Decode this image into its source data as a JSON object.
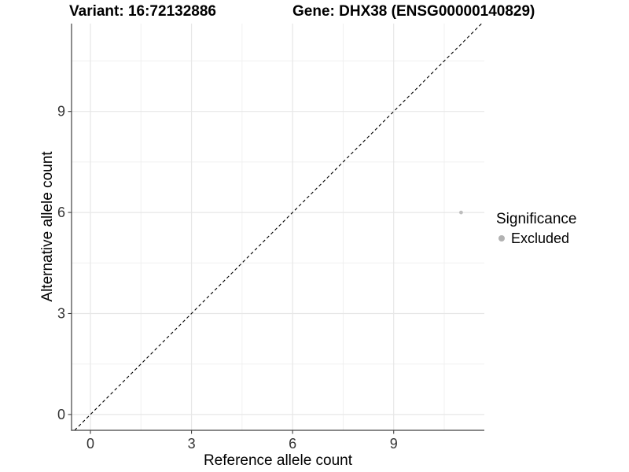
{
  "titles": {
    "variant": "Variant: 16:72132886",
    "gene": "Gene: DHX38 (ENSG00000140829)"
  },
  "legend": {
    "title": "Significance",
    "items": [
      {
        "label": "Excluded",
        "color": "#b2b2b2"
      }
    ]
  },
  "colors": {
    "background": "#ffffff",
    "grid_major": "#e7e7e7",
    "grid_minor": "#f0f0f0",
    "axis_line": "#404040",
    "tick_mark": "#404040",
    "tick_text": "#333333",
    "reference_line": "#000000",
    "point": "#bebebe"
  },
  "chart_data": {
    "type": "scatter",
    "title_left": "Variant: 16:72132886",
    "title_right": "Gene: DHX38 (ENSG00000140829)",
    "xlabel": "Reference allele count",
    "ylabel": "Alternative allele count",
    "xlim": [
      -0.56,
      11.69
    ],
    "ylim": [
      -0.47,
      11.61
    ],
    "x_ticks": [
      0,
      3,
      6,
      9
    ],
    "y_ticks": [
      0,
      3,
      6,
      9
    ],
    "x_minor_ticks": [
      1.5,
      4.5,
      7.5,
      10.5
    ],
    "y_minor_ticks": [
      1.5,
      4.5,
      7.5,
      10.5
    ],
    "grid": {
      "major": true,
      "minor": true
    },
    "legend_title": "Significance",
    "legend_position": "right",
    "series": [
      {
        "name": "Excluded",
        "color": "#bebebe",
        "points": [
          {
            "x": 11,
            "y": 6
          }
        ]
      }
    ],
    "reference_line": {
      "equation": "y = x",
      "style": "dashed",
      "color": "#000000"
    }
  }
}
